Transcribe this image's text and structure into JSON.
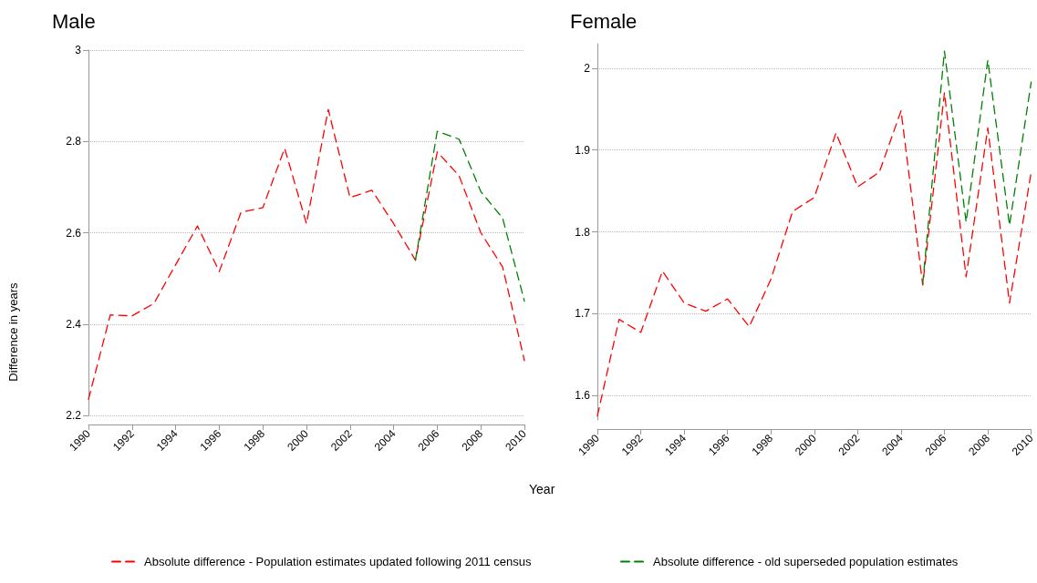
{
  "chart_data": [
    {
      "type": "line",
      "title": "Male",
      "xlabel": "Year",
      "ylabel": "Difference in years",
      "x": [
        1990,
        1991,
        1992,
        1993,
        1994,
        1995,
        1996,
        1997,
        1998,
        1999,
        2000,
        2001,
        2002,
        2003,
        2004,
        2005,
        2006,
        2007,
        2008,
        2009,
        2010
      ],
      "xlim": [
        1990,
        2010
      ],
      "xticks": [
        1990,
        1992,
        1994,
        1996,
        1998,
        2000,
        2002,
        2004,
        2006,
        2008,
        2010
      ],
      "ylim": [
        2.2,
        3
      ],
      "yticks": [
        2.2,
        2.4,
        2.6,
        2.8,
        3
      ],
      "grid": "y",
      "legend": "bottom left",
      "marker": "none",
      "line_style": "dashed",
      "series": [
        {
          "name": "Absolute difference - Population estimates updated following 2011 census",
          "color": "#ff0000",
          "values": [
            2.235,
            2.42,
            2.418,
            2.445,
            2.53,
            2.615,
            2.515,
            2.645,
            2.655,
            2.785,
            2.62,
            2.87,
            2.677,
            2.693,
            2.62,
            2.54,
            2.777,
            2.725,
            2.6,
            2.525,
            2.32
          ]
        },
        {
          "color": "#008000",
          "values": [
            null,
            null,
            null,
            null,
            null,
            null,
            null,
            null,
            null,
            null,
            null,
            null,
            null,
            null,
            null,
            2.54,
            2.822,
            2.805,
            2.69,
            2.632,
            2.45
          ]
        }
      ]
    },
    {
      "type": "line",
      "title": "Female",
      "x": [
        1990,
        1991,
        1992,
        1993,
        1994,
        1995,
        1996,
        1997,
        1998,
        1999,
        2000,
        2001,
        2002,
        2003,
        2004,
        2005,
        2006,
        2007,
        2008,
        2009,
        2010
      ],
      "xlim": [
        1990,
        2010
      ],
      "xticks": [
        1990,
        1992,
        1994,
        1996,
        1998,
        2000,
        2002,
        2004,
        2006,
        2008,
        2010
      ],
      "ylim": [
        1.57,
        2.03
      ],
      "yticks": [
        1.6,
        1.7,
        1.8,
        1.9,
        2
      ],
      "grid": "y",
      "legend": "bottom left",
      "marker": "none",
      "line_style": "dashed",
      "series": [
        {
          "color": "#ff0000",
          "values": [
            1.575,
            1.693,
            1.677,
            1.752,
            1.713,
            1.703,
            1.718,
            1.684,
            1.742,
            1.825,
            1.842,
            1.921,
            1.855,
            1.873,
            1.948,
            1.735,
            1.97,
            1.745,
            1.927,
            1.713,
            1.873
          ]
        },
        {
          "name": "Absolute difference - old superseded population estimates",
          "color": "#008000",
          "values": [
            null,
            null,
            null,
            null,
            null,
            null,
            null,
            null,
            null,
            null,
            null,
            null,
            null,
            null,
            null,
            1.737,
            2.021,
            1.812,
            2.01,
            1.808,
            1.983
          ]
        }
      ]
    }
  ]
}
